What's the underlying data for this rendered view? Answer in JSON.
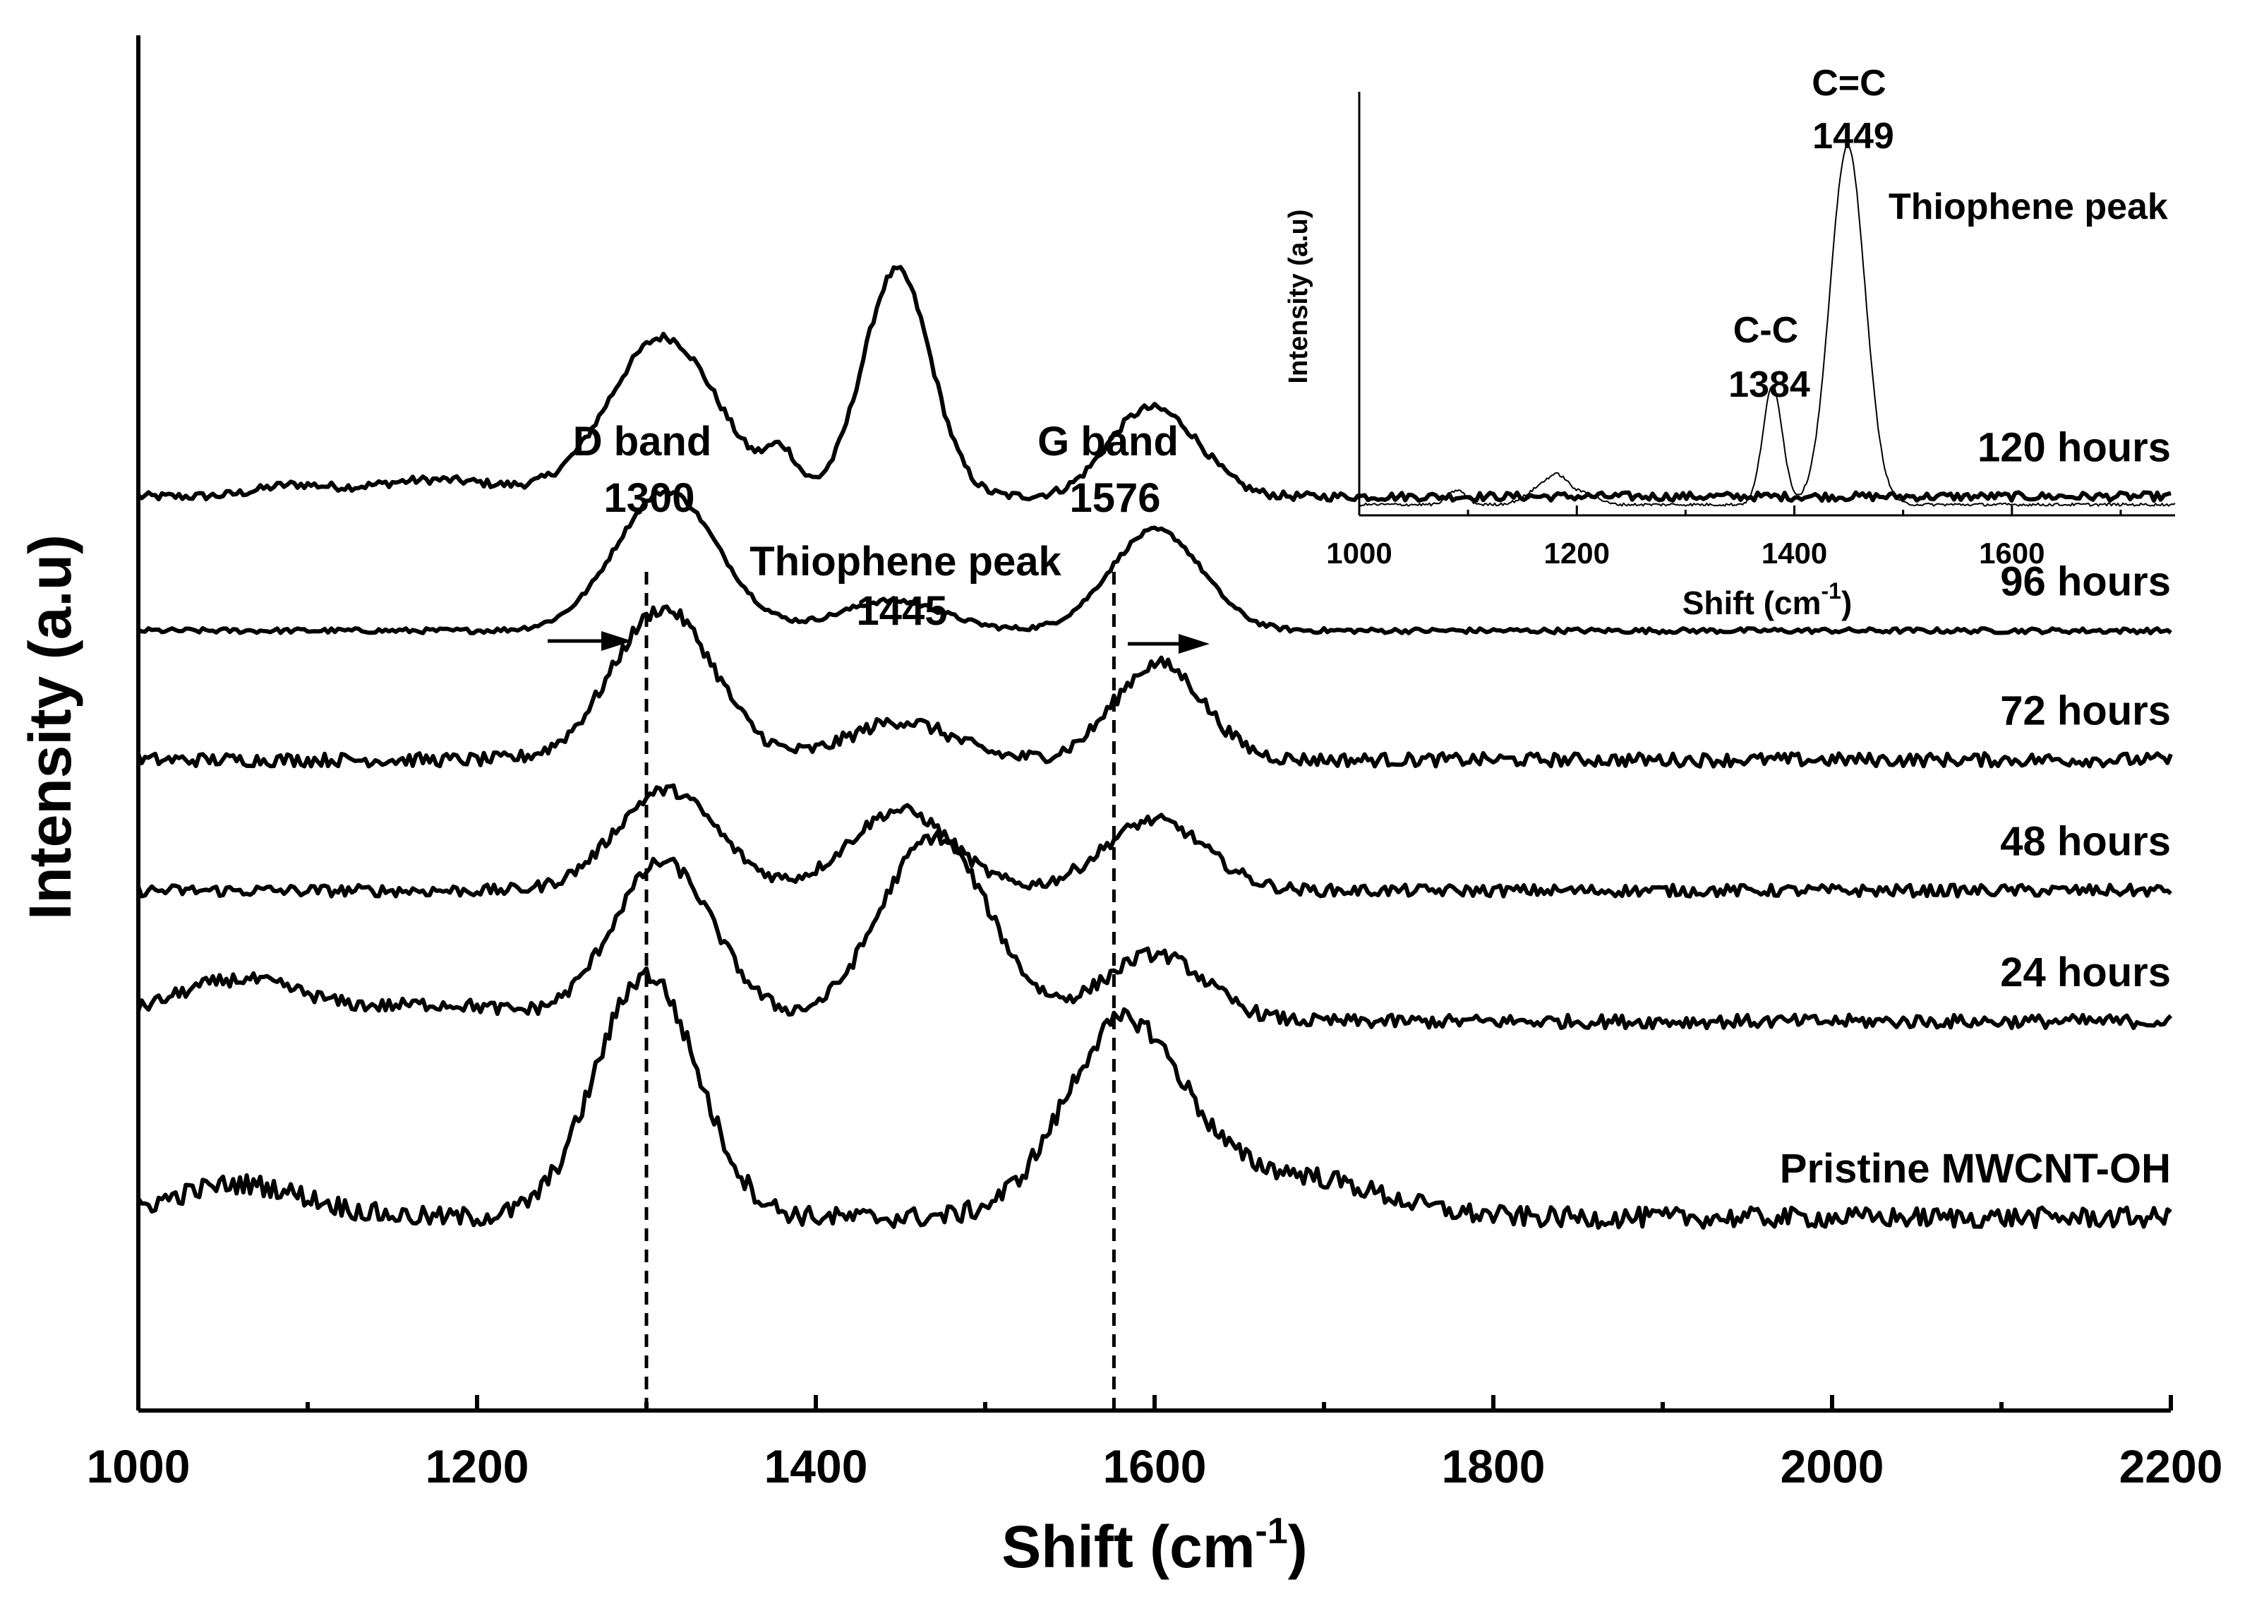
{
  "chart_data": [
    {
      "type": "line",
      "title": "",
      "xlabel": "Shift (cm-1)",
      "xlabel_main": "Shift (cm",
      "xlabel_sup": "-1",
      "xlabel_end": ")",
      "ylabel": "Intensity (a.u)",
      "xlim": [
        1000,
        2200
      ],
      "x_ticks": [
        "1000",
        "1200",
        "1400",
        "1600",
        "1800",
        "2000",
        "2200"
      ],
      "y_ticks": [],
      "grid": false,
      "series": [
        {
          "name": "120 hours",
          "baseline": 5.45,
          "noise": 0.025,
          "peaks": [
            [
              1090,
              0.06,
              20
            ],
            [
              1175,
              0.1,
              40
            ],
            [
              1310,
              0.95,
              32
            ],
            [
              1380,
              0.22,
              9
            ],
            [
              1448,
              1.35,
              20
            ],
            [
              1585,
              0.3,
              20
            ],
            [
              1612,
              0.35,
              22
            ]
          ]
        },
        {
          "name": "96 hours",
          "baseline": 4.65,
          "noise": 0.015,
          "peaks": [
            [
              1312,
              0.83,
              30
            ],
            [
              1445,
              0.18,
              30
            ],
            [
              1590,
              0.3,
              25
            ],
            [
              1610,
              0.35,
              25
            ]
          ]
        },
        {
          "name": "72 hours",
          "baseline": 3.88,
          "noise": 0.04,
          "peaks": [
            [
              1310,
              0.9,
              30
            ],
            [
              1450,
              0.23,
              30
            ],
            [
              1595,
              0.3,
              25
            ],
            [
              1610,
              0.3,
              25
            ]
          ]
        },
        {
          "name": "48 hours",
          "baseline": 3.1,
          "noise": 0.035,
          "peaks": [
            [
              1312,
              0.6,
              30
            ],
            [
              1450,
              0.48,
              30
            ],
            [
              1600,
              0.42,
              30
            ]
          ]
        },
        {
          "name": "24 hours",
          "baseline": 2.32,
          "noise": 0.04,
          "peaks": [
            [
              1060,
              0.25,
              40
            ],
            [
              1180,
              0.1,
              40
            ],
            [
              1310,
              0.95,
              30
            ],
            [
              1470,
              1.1,
              32
            ],
            [
              1600,
              0.4,
              30
            ]
          ]
        },
        {
          "name": "Pristine MWCNT-OH",
          "baseline": 1.15,
          "noise": 0.06,
          "peaks": [
            [
              1060,
              0.2,
              40
            ],
            [
              1300,
              1.45,
              30
            ],
            [
              1582,
              1.15,
              35
            ],
            [
              1680,
              0.25,
              50
            ]
          ]
        }
      ],
      "reference_lines": [
        {
          "x": 1300,
          "label_top": "D band",
          "label_value": "1300",
          "arrow": "right"
        },
        {
          "x": 1576,
          "label_top": "G band",
          "label_value": "1576",
          "arrow": "right"
        }
      ],
      "annotations": [
        {
          "text": "Thiophene peak",
          "value": "1445",
          "x": 1445
        }
      ]
    },
    {
      "type": "line",
      "title": "",
      "xlabel": "Shift (cm-1)",
      "xlabel_main": "Shift (cm",
      "xlabel_sup": "-1",
      "xlabel_end": ")",
      "ylabel": "Intensity (a.u)",
      "xlim": [
        1000,
        1750
      ],
      "x_ticks": [
        "1000",
        "1200",
        "1400",
        "1600"
      ],
      "grid": false,
      "series": [
        {
          "name": "Thiophene",
          "baseline": 0.03,
          "noise": 0.004,
          "peaks": [
            [
              1090,
              0.04,
              8
            ],
            [
              1170,
              0.05,
              15
            ],
            [
              1185,
              0.05,
              10
            ],
            [
              1210,
              0.03,
              10
            ],
            [
              1380,
              0.33,
              9
            ],
            [
              1449,
              1.0,
              16
            ]
          ]
        }
      ],
      "annotations": [
        {
          "text": "C=C",
          "value": "1449",
          "x": 1449
        },
        {
          "text": "C-C",
          "value": "1384",
          "x": 1384
        },
        {
          "text": "Thiophene peak"
        }
      ]
    }
  ]
}
